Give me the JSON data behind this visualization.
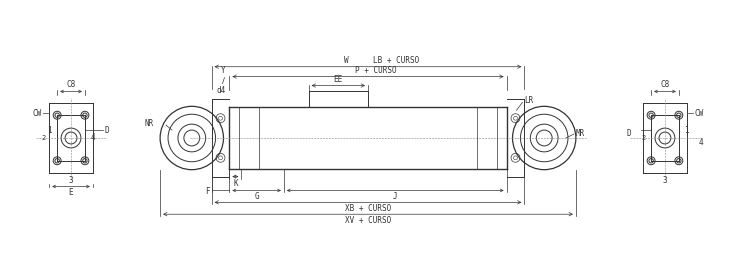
{
  "bg_color": "#ffffff",
  "line_color": "#333333",
  "dim_color": "#333333",
  "text_color": "#333333",
  "fig_width": 7.36,
  "fig_height": 2.75,
  "dpi": 100,
  "labels": {
    "W": "W",
    "LB_CURSO": "LB + CURSO",
    "Y": "Y",
    "P_CURSO": "P + CURSO",
    "EE": "EE",
    "LR": "LR",
    "NR": "NR",
    "MR": "MR",
    "d4": "d4",
    "K": "K",
    "F": "F",
    "G": "G",
    "J": "J",
    "XB_CURSO": "XB + CURSO",
    "XV_CURSO": "XV + CURSO",
    "CB": "C8",
    "CW": "CW",
    "D": "D",
    "E": "E",
    "num1": "1",
    "num2": "2",
    "num3": "3",
    "num4": "4"
  }
}
